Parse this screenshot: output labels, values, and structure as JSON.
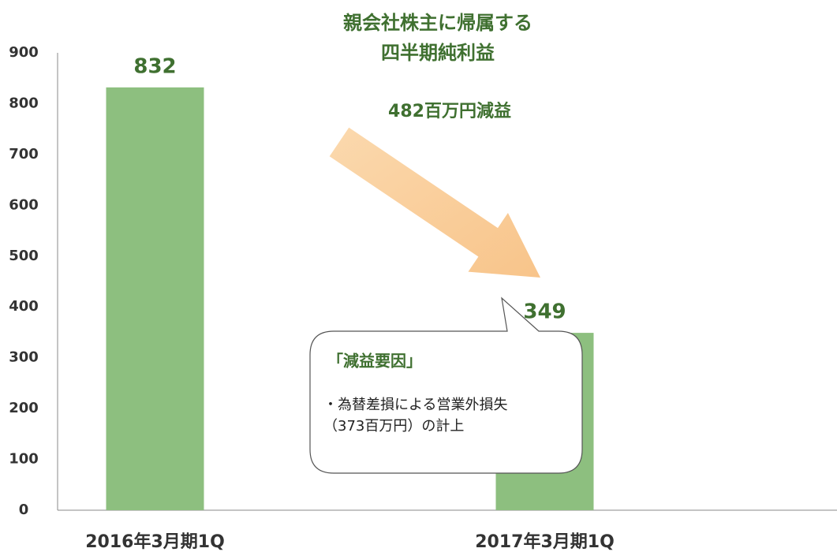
{
  "chart_data": {
    "type": "bar",
    "title": [
      "親会社株主に帰属する",
      "四半期純利益"
    ],
    "categories": [
      "2016年3月期1Q",
      "2017年3月期1Q"
    ],
    "values": [
      832,
      349
    ],
    "color": "#8dbf7f",
    "ylim": [
      0,
      900
    ],
    "yticks": [
      0,
      100,
      200,
      300,
      400,
      500,
      600,
      700,
      800,
      900
    ],
    "grid": false,
    "annotations": {
      "change": "482百万円減益",
      "callout_title": "「減益要因」",
      "callout_lines": [
        "・為替差損による営業外損失",
        "（373百万円）の計上"
      ]
    }
  }
}
